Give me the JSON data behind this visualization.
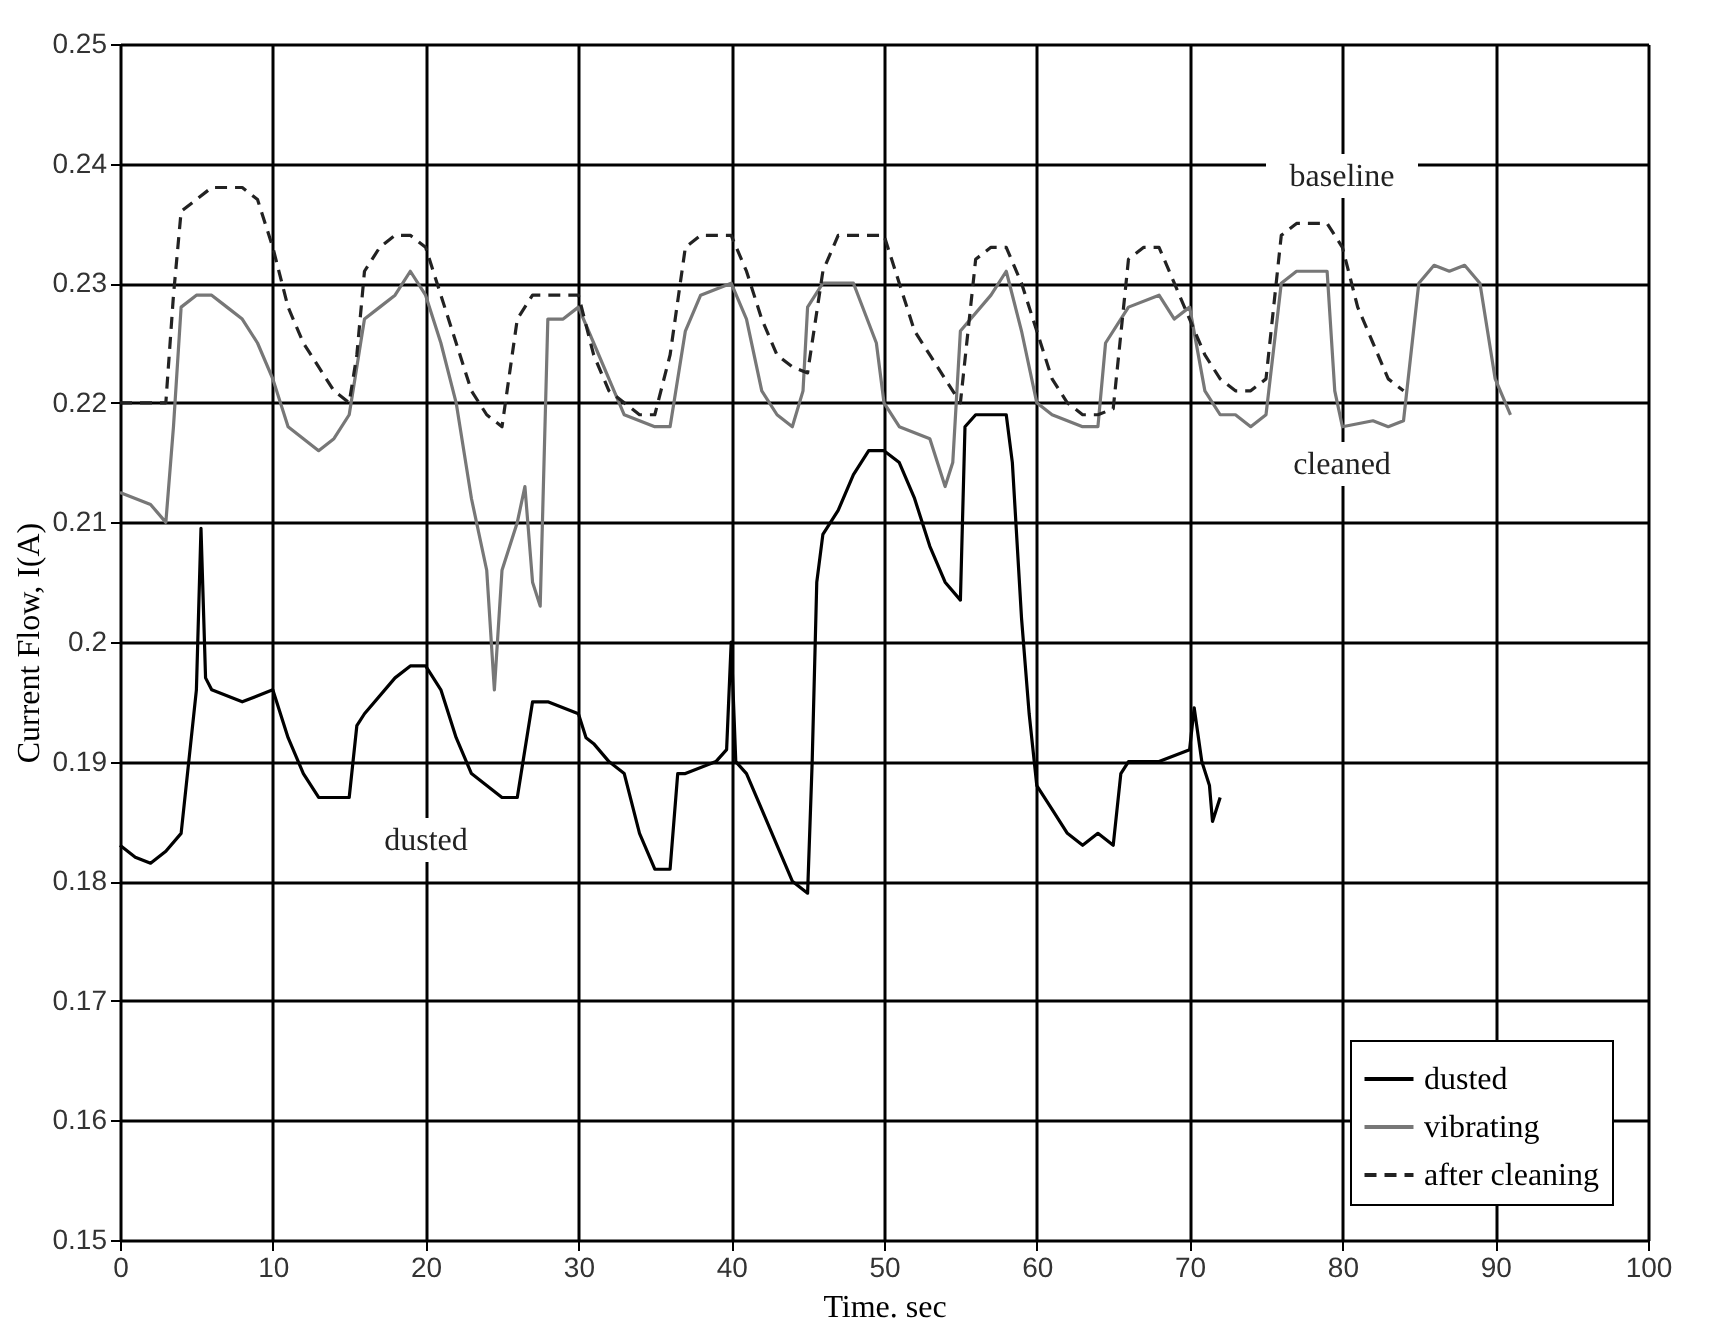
{
  "chart_data": {
    "type": "line",
    "xlabel": "Time. sec",
    "ylabel": "Current Flow, I(A)",
    "xlim": [
      0,
      100
    ],
    "xticks": [
      0,
      10,
      20,
      30,
      40,
      50,
      60,
      70,
      80,
      90,
      100
    ],
    "ylim": [
      0.15,
      0.25
    ],
    "yticks": [
      0.15,
      0.16,
      0.17,
      0.18,
      0.19,
      0.2,
      0.21,
      0.22,
      0.23,
      0.24,
      0.25
    ],
    "grid": true,
    "legend": "bottom right",
    "marker": "none",
    "annotations": [
      "baseline",
      "cleaned",
      "dusted"
    ],
    "series": [
      {
        "name": "dusted",
        "color": "#000000",
        "line_style": "solid",
        "x": [
          0,
          1,
          2,
          3,
          4,
          4.5,
          5,
          5.3,
          5.6,
          6,
          8,
          10,
          11,
          12,
          13,
          14,
          15,
          15.5,
          16,
          18,
          19,
          20,
          21,
          22,
          23,
          24,
          25,
          26,
          27,
          28,
          30,
          30.5,
          31,
          32,
          33,
          34,
          35,
          36,
          36.5,
          37,
          39,
          39.7,
          40,
          40.3,
          41,
          42,
          43,
          44,
          45,
          45.3,
          45.6,
          46,
          47,
          48,
          49,
          50,
          51,
          52,
          53,
          54,
          55,
          55.3,
          56,
          58,
          58.4,
          59,
          59.5,
          60,
          61,
          62,
          63,
          64,
          65,
          65.5,
          66,
          68,
          70,
          70.3,
          70.8,
          71.3,
          71.5,
          72
        ],
        "values": [
          0.183,
          0.182,
          0.1815,
          0.1825,
          0.184,
          0.19,
          0.196,
          0.2095,
          0.197,
          0.196,
          0.195,
          0.196,
          0.192,
          0.189,
          0.187,
          0.187,
          0.187,
          0.193,
          0.194,
          0.197,
          0.198,
          0.198,
          0.196,
          0.192,
          0.189,
          0.188,
          0.187,
          0.187,
          0.195,
          0.195,
          0.194,
          0.192,
          0.1915,
          0.19,
          0.189,
          0.184,
          0.181,
          0.181,
          0.189,
          0.189,
          0.19,
          0.191,
          0.2,
          0.19,
          0.189,
          0.186,
          0.183,
          0.18,
          0.179,
          0.19,
          0.205,
          0.209,
          0.211,
          0.214,
          0.216,
          0.216,
          0.215,
          0.212,
          0.208,
          0.205,
          0.2035,
          0.218,
          0.219,
          0.219,
          0.215,
          0.202,
          0.194,
          0.188,
          0.186,
          0.184,
          0.183,
          0.184,
          0.183,
          0.189,
          0.19,
          0.19,
          0.191,
          0.1945,
          0.19,
          0.188,
          0.185,
          0.187
        ]
      },
      {
        "name": "vibrating",
        "color": "#777777",
        "line_style": "solid",
        "x": [
          0,
          1,
          2,
          3,
          3.5,
          4,
          5,
          6,
          7,
          8,
          9,
          10,
          11,
          12,
          13,
          14,
          15,
          16,
          17,
          18,
          19,
          20,
          21,
          22,
          23,
          24,
          24.5,
          25,
          26,
          26.5,
          27,
          27.5,
          28,
          29,
          30,
          31,
          32,
          33,
          35,
          36,
          37,
          38,
          40,
          41,
          42,
          43,
          44,
          44.7,
          45,
          46,
          48,
          49.5,
          50,
          51,
          53,
          54,
          54.5,
          55,
          57,
          58,
          59,
          60,
          61,
          63,
          64,
          64.5,
          66,
          68,
          69,
          70,
          71,
          72,
          73,
          74,
          75,
          76,
          77,
          78,
          79,
          79.5,
          80,
          82,
          83,
          84,
          85,
          86,
          87,
          88,
          89,
          90,
          91
        ],
        "values": [
          0.2125,
          0.212,
          0.2115,
          0.21,
          0.218,
          0.228,
          0.229,
          0.229,
          0.228,
          0.227,
          0.225,
          0.222,
          0.218,
          0.217,
          0.216,
          0.217,
          0.219,
          0.227,
          0.228,
          0.229,
          0.231,
          0.229,
          0.225,
          0.22,
          0.212,
          0.206,
          0.196,
          0.206,
          0.21,
          0.213,
          0.205,
          0.203,
          0.227,
          0.227,
          0.228,
          0.225,
          0.222,
          0.219,
          0.218,
          0.218,
          0.226,
          0.229,
          0.23,
          0.227,
          0.221,
          0.219,
          0.218,
          0.221,
          0.228,
          0.23,
          0.23,
          0.225,
          0.22,
          0.218,
          0.217,
          0.213,
          0.215,
          0.226,
          0.229,
          0.231,
          0.226,
          0.22,
          0.219,
          0.218,
          0.218,
          0.225,
          0.228,
          0.229,
          0.227,
          0.228,
          0.221,
          0.219,
          0.219,
          0.218,
          0.219,
          0.23,
          0.231,
          0.231,
          0.231,
          0.221,
          0.218,
          0.2185,
          0.218,
          0.2185,
          0.23,
          0.2315,
          0.231,
          0.2315,
          0.23,
          0.222,
          0.219
        ]
      },
      {
        "name": "after cleaning",
        "color": "#222222",
        "line_style": "dashed",
        "x": [
          0,
          2,
          3,
          3.5,
          4,
          5,
          6,
          7,
          8,
          9,
          10,
          11,
          12,
          13,
          14,
          15,
          15.5,
          16,
          17,
          18,
          19,
          20,
          21,
          22,
          23,
          24,
          25,
          26,
          27,
          28,
          29,
          30,
          31,
          32,
          33,
          34,
          35,
          36,
          37,
          38,
          40,
          41,
          42,
          43,
          44,
          45,
          46,
          47,
          48,
          50,
          51,
          52,
          53,
          54,
          55,
          56,
          57,
          58,
          59,
          60,
          61,
          62,
          63,
          64,
          65,
          66,
          67,
          68,
          69,
          70,
          71,
          72,
          73,
          74,
          75,
          76,
          77,
          78,
          79,
          80,
          81,
          82,
          83,
          84
        ],
        "values": [
          0.22,
          0.22,
          0.22,
          0.229,
          0.236,
          0.237,
          0.238,
          0.238,
          0.238,
          0.237,
          0.233,
          0.228,
          0.225,
          0.223,
          0.221,
          0.22,
          0.224,
          0.231,
          0.233,
          0.234,
          0.234,
          0.233,
          0.229,
          0.225,
          0.221,
          0.219,
          0.218,
          0.227,
          0.229,
          0.229,
          0.229,
          0.229,
          0.224,
          0.221,
          0.22,
          0.219,
          0.219,
          0.224,
          0.233,
          0.234,
          0.234,
          0.231,
          0.227,
          0.224,
          0.223,
          0.2225,
          0.231,
          0.234,
          0.234,
          0.234,
          0.23,
          0.226,
          0.224,
          0.222,
          0.22,
          0.232,
          0.233,
          0.233,
          0.23,
          0.226,
          0.222,
          0.22,
          0.219,
          0.219,
          0.2195,
          0.232,
          0.233,
          0.233,
          0.23,
          0.227,
          0.224,
          0.222,
          0.221,
          0.221,
          0.222,
          0.234,
          0.235,
          0.235,
          0.235,
          0.233,
          0.228,
          0.225,
          0.222,
          0.221
        ]
      }
    ]
  }
}
